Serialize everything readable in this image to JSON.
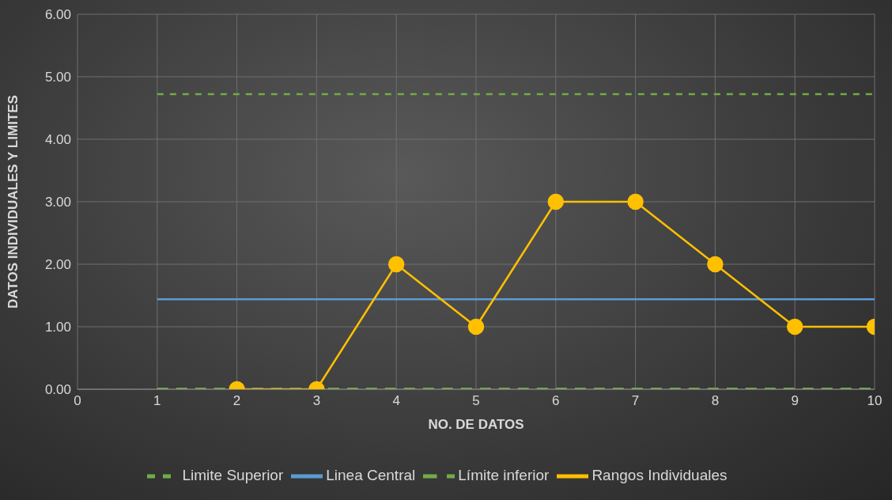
{
  "chart_data": {
    "type": "line",
    "xlabel": "NO. DE DATOS",
    "ylabel": "DATOS INDIVIDUALES Y LIMITES",
    "xlim": [
      0,
      10
    ],
    "xticks": [
      0,
      1,
      2,
      3,
      4,
      5,
      6,
      7,
      8,
      9,
      10
    ],
    "ylim": [
      0,
      6
    ],
    "yticks": [
      {
        "value": 0,
        "label": "0.00"
      },
      {
        "value": 1,
        "label": "1.00"
      },
      {
        "value": 2,
        "label": "2.00"
      },
      {
        "value": 3,
        "label": "3.00"
      },
      {
        "value": 4,
        "label": "4.00"
      },
      {
        "value": 5,
        "label": "5.00"
      },
      {
        "value": 6,
        "label": "6.00"
      }
    ],
    "grid": true,
    "legend": "bottom",
    "series": [
      {
        "name": "Linea Central",
        "color": "#5b9bd5",
        "x": [
          1,
          10
        ],
        "values": [
          1.44,
          1.44
        ],
        "marker": "none",
        "line_style": "solid"
      },
      {
        "name": "Limite Superior",
        "color": "#70ad47",
        "x": [
          1,
          10
        ],
        "values": [
          4.72,
          4.72
        ],
        "marker": "none",
        "line_style": "dashed"
      },
      {
        "name": "Límite inferior",
        "color": "#70ad47",
        "x": [
          1,
          10
        ],
        "values": [
          0,
          0
        ],
        "marker": "none",
        "line_style": "dashed"
      },
      {
        "name": "Rangos Individuales",
        "color": "#ffc000",
        "x": [
          2,
          3,
          4,
          5,
          6,
          7,
          8,
          9,
          10
        ],
        "values": [
          0,
          0,
          2,
          1,
          3,
          3,
          2,
          1,
          1
        ],
        "marker": "circle",
        "line_style": "solid"
      }
    ]
  }
}
